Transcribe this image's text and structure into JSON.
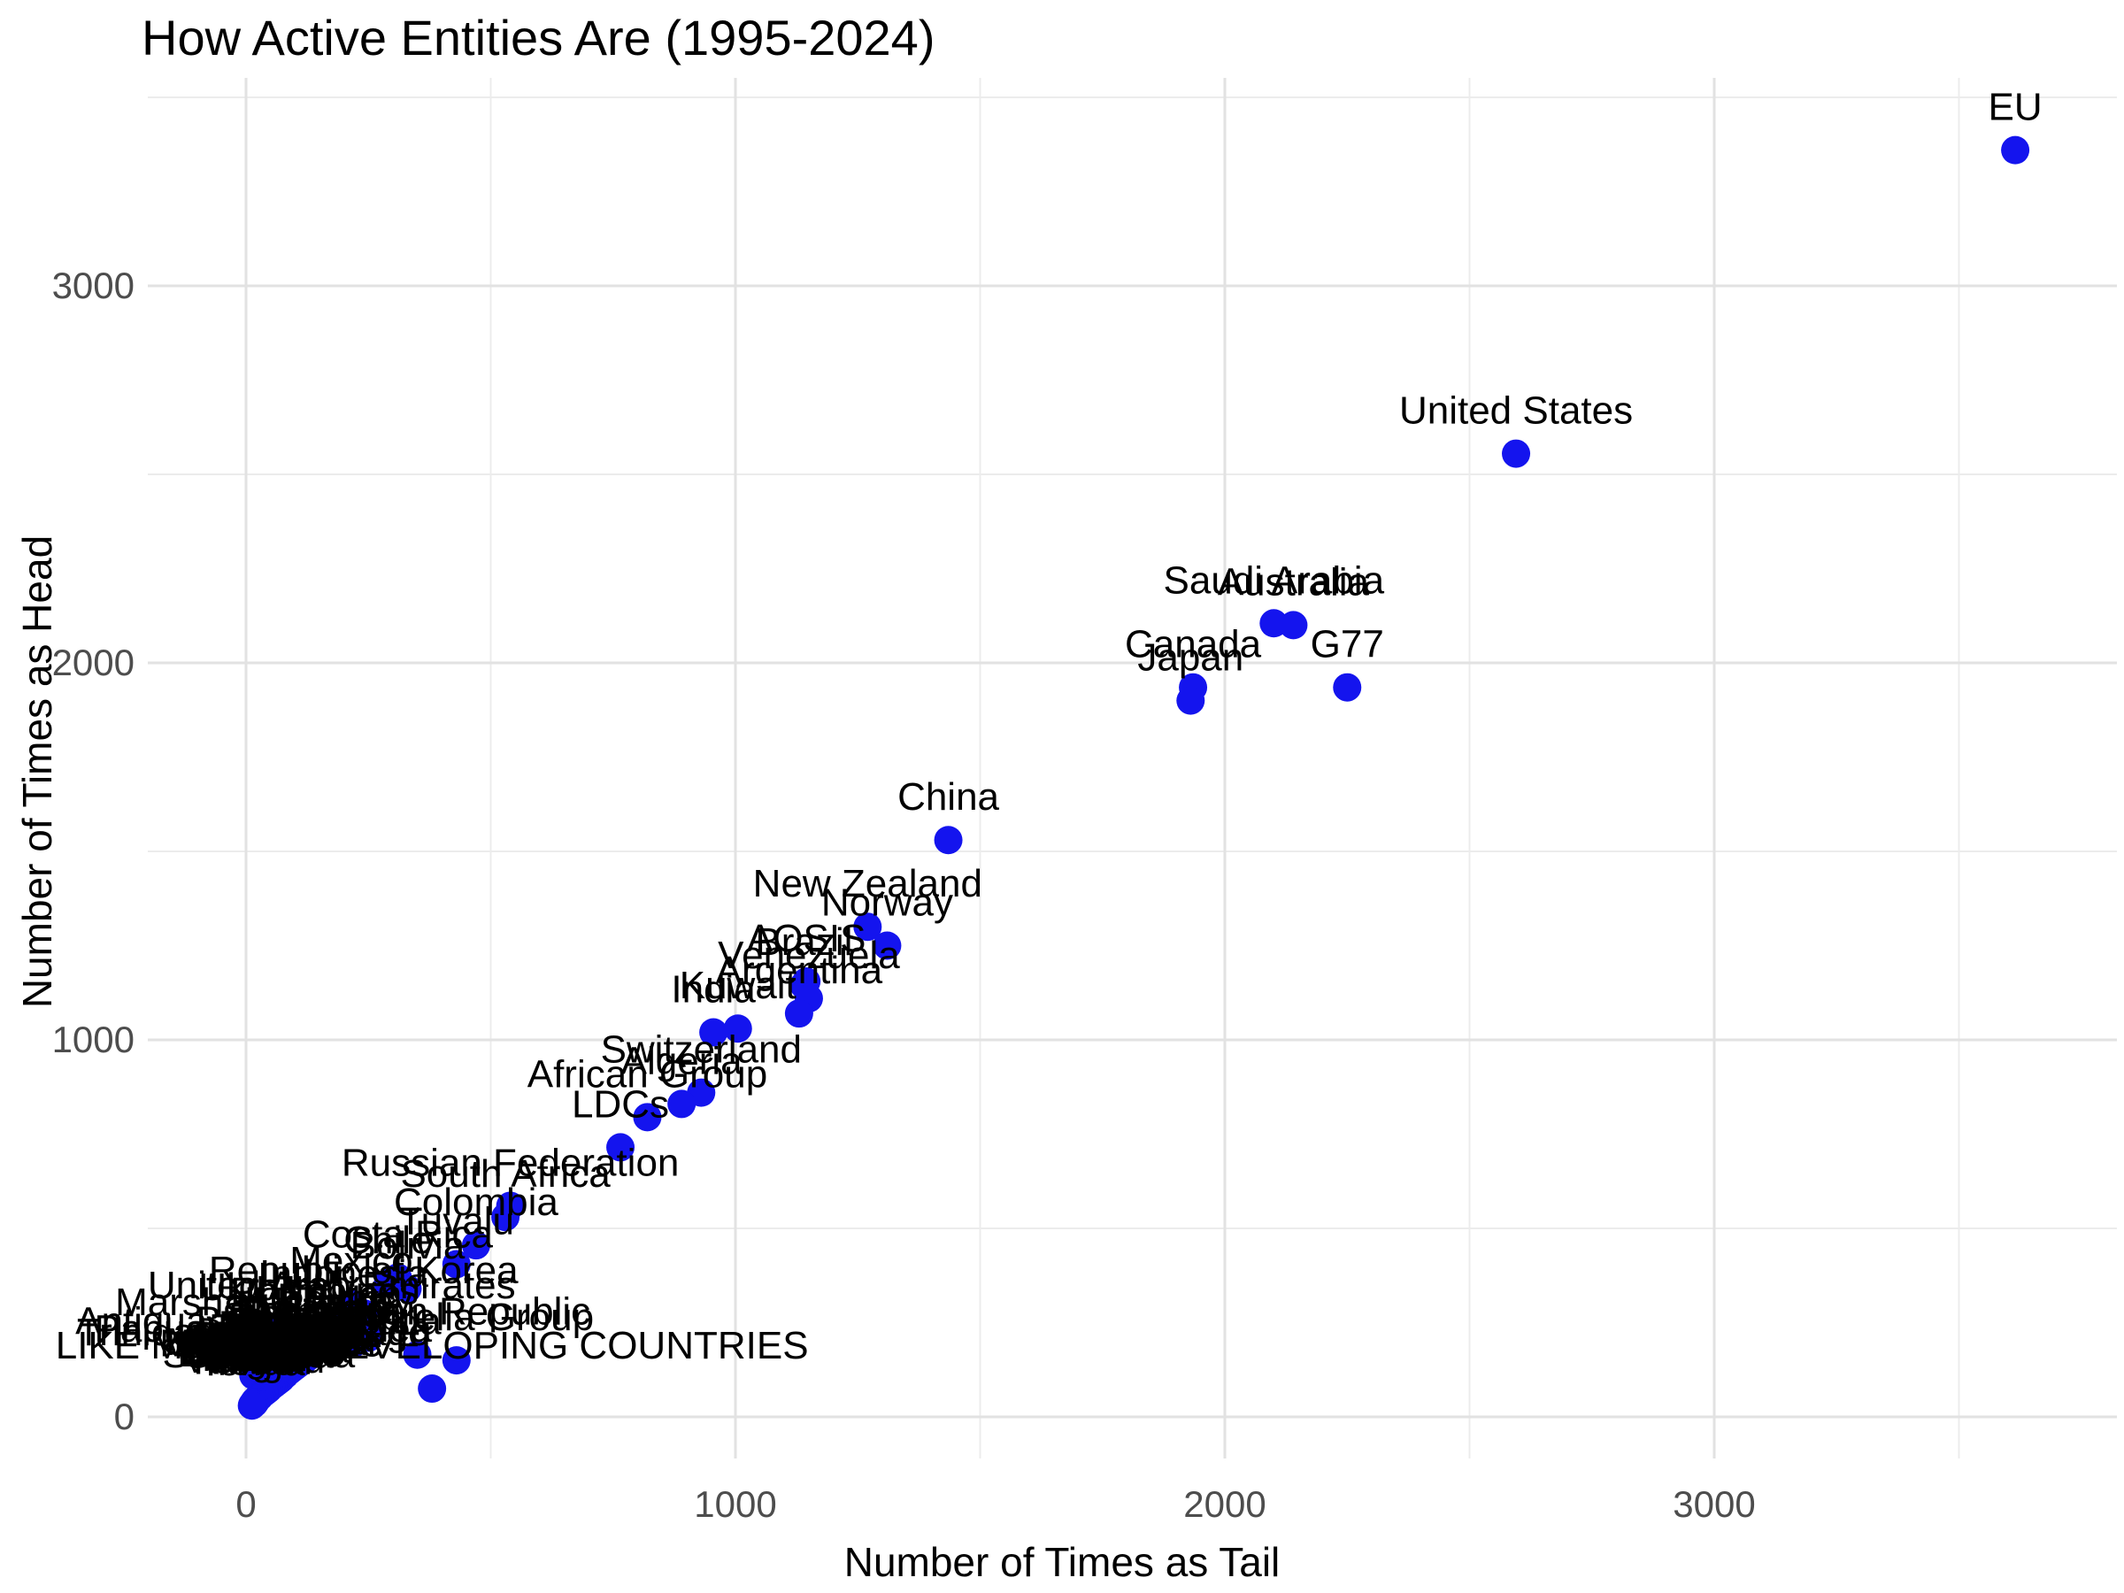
{
  "chart_data": {
    "type": "scatter",
    "title": "How Active Entities Are (1995-2024)",
    "xlabel": "Number of Times as Tail",
    "ylabel": "Number of Times as Head",
    "x_ticks": [
      0,
      1000,
      2000,
      3000
    ],
    "y_ticks": [
      0,
      1000,
      2000,
      3000
    ],
    "x_minor_gridlines": [
      500,
      1500,
      2500,
      3500
    ],
    "y_minor_gridlines": [
      500,
      1500,
      2500,
      3500
    ],
    "xlim": [
      -200,
      3840
    ],
    "ylim": [
      -110,
      3560
    ],
    "grid": true,
    "legend_position": "none",
    "colors": {
      "point": "#1414EE",
      "grid_major": "#E2E2E2",
      "grid_minor": "#ECECEC",
      "tick_text": "#4D4D4D",
      "label_text": "#000000",
      "background": "#FFFFFF"
    },
    "points": [
      {
        "label": "EU",
        "x": 3615,
        "y": 3360
      },
      {
        "label": "United States",
        "x": 2595,
        "y": 2555
      },
      {
        "label": "Saudi Arabia",
        "x": 2100,
        "y": 2105
      },
      {
        "label": "Australia",
        "x": 2140,
        "y": 2100
      },
      {
        "label": "G77",
        "x": 2250,
        "y": 1935
      },
      {
        "label": "Canada",
        "x": 1935,
        "y": 1935
      },
      {
        "label": "Japan",
        "x": 1930,
        "y": 1900
      },
      {
        "label": "China",
        "x": 1435,
        "y": 1530
      },
      {
        "label": "New Zealand",
        "x": 1270,
        "y": 1300
      },
      {
        "label": "Norway",
        "x": 1310,
        "y": 1250
      },
      {
        "label": "AOSIS",
        "x": 1145,
        "y": 1155
      },
      {
        "label": "Brazil",
        "x": 1140,
        "y": 1145
      },
      {
        "label": "Venezuela",
        "x": 1150,
        "y": 1110
      },
      {
        "label": "Argentina",
        "x": 1130,
        "y": 1070
      },
      {
        "label": "Kuwait",
        "x": 1005,
        "y": 1030
      },
      {
        "label": "India",
        "x": 955,
        "y": 1020
      },
      {
        "label": "Switzerland",
        "x": 930,
        "y": 860
      },
      {
        "label": "Algeria",
        "x": 890,
        "y": 830
      },
      {
        "label": "African Group",
        "x": 820,
        "y": 795
      },
      {
        "label": "LDCs",
        "x": 765,
        "y": 715
      },
      {
        "label": "Russian Federation",
        "x": 540,
        "y": 560
      },
      {
        "label": "South Africa",
        "x": 530,
        "y": 530
      },
      {
        "label": "Colombia",
        "x": 470,
        "y": 455
      },
      {
        "label": "Tuvalu",
        "x": 430,
        "y": 405
      },
      {
        "label": "Costa Rica",
        "x": 310,
        "y": 370
      },
      {
        "label": "Chile",
        "x": 290,
        "y": 355
      },
      {
        "label": "Bolivia",
        "x": 330,
        "y": 340
      },
      {
        "label": "Mexico",
        "x": 215,
        "y": 300
      },
      {
        "label": "Republic of Korea",
        "x": 240,
        "y": 275
      },
      {
        "label": "Indonesia",
        "x": 200,
        "y": 265
      },
      {
        "label": "United Arab Emirates",
        "x": 175,
        "y": 235
      },
      {
        "label": "Ukraine",
        "x": 40,
        "y": 230
      },
      {
        "label": "Philippines",
        "x": 160,
        "y": 220
      },
      {
        "label": "Iran",
        "x": 250,
        "y": 210
      },
      {
        "label": "Egypt",
        "x": 170,
        "y": 200
      },
      {
        "label": "Turkey",
        "x": 220,
        "y": 195
      },
      {
        "label": "Marshall Islands",
        "x": 20,
        "y": 190
      },
      {
        "label": "Peru",
        "x": 150,
        "y": 185
      },
      {
        "label": "Malaysia",
        "x": 140,
        "y": 175
      },
      {
        "label": "Singapore",
        "x": 135,
        "y": 168
      },
      {
        "label": "Dominican Republic",
        "x": 350,
        "y": 165
      },
      {
        "label": "Thailand",
        "x": 128,
        "y": 160
      },
      {
        "label": "Nigeria",
        "x": 120,
        "y": 152
      },
      {
        "label": "Umbrella Group",
        "x": 430,
        "y": 150
      },
      {
        "label": "Pakistan",
        "x": 116,
        "y": 150
      },
      {
        "label": "Kenya",
        "x": 112,
        "y": 146
      },
      {
        "label": "Bangladesh",
        "x": 108,
        "y": 142
      },
      {
        "label": "Ethiopia",
        "x": 106,
        "y": 140
      },
      {
        "label": "Antigua and Barbuda",
        "x": 25,
        "y": 140
      },
      {
        "label": "Sudan",
        "x": 102,
        "y": 136
      },
      {
        "label": "Senegal",
        "x": 100,
        "y": 134
      },
      {
        "label": "Morocco",
        "x": 96,
        "y": 130
      },
      {
        "label": "Uganda",
        "x": 94,
        "y": 128
      },
      {
        "label": "Tunisia",
        "x": 90,
        "y": 124
      },
      {
        "label": "Tanzania",
        "x": 88,
        "y": 122
      },
      {
        "label": "Papua New Guinea",
        "x": 35,
        "y": 120
      },
      {
        "label": "Zambia",
        "x": 84,
        "y": 118
      },
      {
        "label": "Viet Nam",
        "x": 82,
        "y": 116
      },
      {
        "label": "Ghana",
        "x": 80,
        "y": 112
      },
      {
        "label": "Trinidad and Tobago",
        "x": 15,
        "y": 110
      },
      {
        "label": "Cuba",
        "x": 76,
        "y": 108
      },
      {
        "label": "Qatar",
        "x": 74,
        "y": 106
      },
      {
        "label": "Jamaica",
        "x": 72,
        "y": 102
      },
      {
        "label": "Cameroon",
        "x": 71,
        "y": 101
      },
      {
        "label": "Sri Lanka",
        "x": 70,
        "y": 100
      },
      {
        "label": "Panama",
        "x": 68,
        "y": 98
      },
      {
        "label": "Burundi",
        "x": 67,
        "y": 97
      },
      {
        "label": "Oman",
        "x": 66,
        "y": 96
      },
      {
        "label": "Guatemala",
        "x": 64,
        "y": 94
      },
      {
        "label": "Rwanda",
        "x": 63,
        "y": 93
      },
      {
        "label": "Bahrain",
        "x": 62,
        "y": 92
      },
      {
        "label": "Honduras",
        "x": 60,
        "y": 90
      },
      {
        "label": "Malawi",
        "x": 59,
        "y": 89
      },
      {
        "label": "Nepal",
        "x": 58,
        "y": 88
      },
      {
        "label": "Nicaragua",
        "x": 56,
        "y": 86
      },
      {
        "label": "Madagascar",
        "x": 55,
        "y": 85
      },
      {
        "label": "Libya",
        "x": 54,
        "y": 84
      },
      {
        "label": "Uruguay",
        "x": 52,
        "y": 82
      },
      {
        "label": "Mozambique",
        "x": 51,
        "y": 81
      },
      {
        "label": "Iraq",
        "x": 50,
        "y": 80
      },
      {
        "label": "Paraguay",
        "x": 48,
        "y": 78
      },
      {
        "label": "Zimbabwe",
        "x": 47,
        "y": 76
      },
      {
        "label": "LIKE MINDED DEVELOPING COUNTRIES",
        "x": 380,
        "y": 75
      },
      {
        "label": "Ecuador",
        "x": 46,
        "y": 74
      },
      {
        "label": "Mongolia",
        "x": 44,
        "y": 72
      },
      {
        "label": "Fiji",
        "x": 42,
        "y": 70
      },
      {
        "label": "Namibia",
        "x": 41,
        "y": 69
      },
      {
        "label": "Samoa",
        "x": 38,
        "y": 66
      },
      {
        "label": "Botswana",
        "x": 37,
        "y": 65
      },
      {
        "label": "Haiti",
        "x": 36,
        "y": 64
      },
      {
        "label": "Maldives",
        "x": 34,
        "y": 62
      },
      {
        "label": "Lebanon",
        "x": 32,
        "y": 60
      },
      {
        "label": "Angola",
        "x": 31,
        "y": 59
      },
      {
        "label": "Barbados",
        "x": 30,
        "y": 58
      },
      {
        "label": "Jordan",
        "x": 29,
        "y": 56
      },
      {
        "label": "Bahamas",
        "x": 28,
        "y": 54
      },
      {
        "label": "Gabon",
        "x": 27,
        "y": 53
      },
      {
        "label": "Saint Lucia",
        "x": 26,
        "y": 52
      },
      {
        "label": "Grenada",
        "x": 24,
        "y": 50
      },
      {
        "label": "Benin",
        "x": 23,
        "y": 48
      },
      {
        "label": "Belize",
        "x": 22,
        "y": 46
      },
      {
        "label": "Mali",
        "x": 21,
        "y": 44
      },
      {
        "label": "Nauru",
        "x": 18,
        "y": 42
      },
      {
        "label": "Niger",
        "x": 19,
        "y": 40
      },
      {
        "label": "Vanuatu",
        "x": 16,
        "y": 38
      },
      {
        "label": "Chad",
        "x": 17,
        "y": 36
      },
      {
        "label": "Kiribati",
        "x": 14,
        "y": 34
      },
      {
        "label": "Togo",
        "x": 13,
        "y": 32
      },
      {
        "label": "Tonga",
        "x": 12,
        "y": 30
      }
    ]
  }
}
